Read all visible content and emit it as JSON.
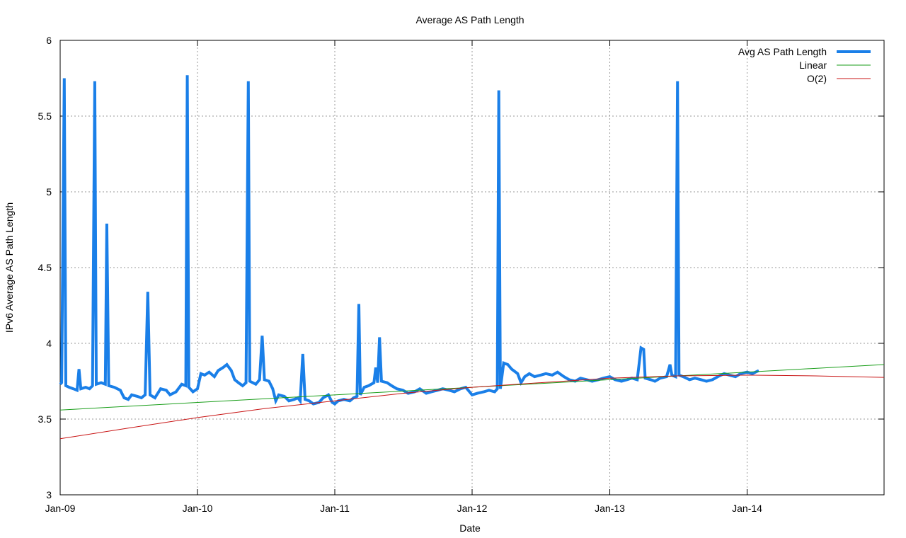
{
  "chart_data": {
    "type": "line",
    "title": "Average AS Path Length",
    "xlabel": "Date",
    "ylabel": "IPv6 Average AS Path Length",
    "x_ticks": [
      "Jan-09",
      "Jan-10",
      "Jan-11",
      "Jan-12",
      "Jan-13",
      "Jan-14"
    ],
    "y_ticks": [
      "3",
      "3.5",
      "4",
      "4.5",
      "5",
      "5.5",
      "6"
    ],
    "xlim": [
      "2009-01-01",
      "2014-12-31"
    ],
    "ylim": [
      3,
      6
    ],
    "grid": true,
    "legend_position": "top-right",
    "series": [
      {
        "name": "Avg AS Path Length",
        "color": "#1a7fe8",
        "style": "thick",
        "points": [
          [
            "2009-01-01",
            3.73
          ],
          [
            "2009-01-05",
            3.74
          ],
          [
            "2009-01-12",
            5.75
          ],
          [
            "2009-01-16",
            3.72
          ],
          [
            "2009-01-25",
            3.71
          ],
          [
            "2009-02-05",
            3.7
          ],
          [
            "2009-02-15",
            3.69
          ],
          [
            "2009-02-20",
            3.83
          ],
          [
            "2009-02-25",
            3.7
          ],
          [
            "2009-03-10",
            3.71
          ],
          [
            "2009-03-20",
            3.7
          ],
          [
            "2009-03-28",
            3.72
          ],
          [
            "2009-04-03",
            5.73
          ],
          [
            "2009-04-07",
            3.73
          ],
          [
            "2009-04-20",
            3.74
          ],
          [
            "2009-05-01",
            3.73
          ],
          [
            "2009-05-05",
            4.79
          ],
          [
            "2009-05-10",
            3.72
          ],
          [
            "2009-05-25",
            3.71
          ],
          [
            "2009-06-10",
            3.69
          ],
          [
            "2009-06-20",
            3.64
          ],
          [
            "2009-07-01",
            3.63
          ],
          [
            "2009-07-10",
            3.66
          ],
          [
            "2009-07-25",
            3.65
          ],
          [
            "2009-08-05",
            3.64
          ],
          [
            "2009-08-15",
            3.66
          ],
          [
            "2009-08-22",
            4.34
          ],
          [
            "2009-08-28",
            3.66
          ],
          [
            "2009-09-10",
            3.64
          ],
          [
            "2009-09-25",
            3.7
          ],
          [
            "2009-10-10",
            3.69
          ],
          [
            "2009-10-20",
            3.66
          ],
          [
            "2009-11-05",
            3.68
          ],
          [
            "2009-11-20",
            3.73
          ],
          [
            "2009-12-01",
            3.72
          ],
          [
            "2009-12-05",
            5.77
          ],
          [
            "2009-12-09",
            3.71
          ],
          [
            "2009-12-20",
            3.68
          ],
          [
            "2010-01-01",
            3.7
          ],
          [
            "2010-01-10",
            3.8
          ],
          [
            "2010-01-20",
            3.79
          ],
          [
            "2010-02-01",
            3.81
          ],
          [
            "2010-02-15",
            3.78
          ],
          [
            "2010-02-25",
            3.82
          ],
          [
            "2010-03-10",
            3.84
          ],
          [
            "2010-03-20",
            3.86
          ],
          [
            "2010-04-01",
            3.82
          ],
          [
            "2010-04-10",
            3.76
          ],
          [
            "2010-04-20",
            3.74
          ],
          [
            "2010-05-01",
            3.72
          ],
          [
            "2010-05-10",
            3.74
          ],
          [
            "2010-05-16",
            5.73
          ],
          [
            "2010-05-20",
            3.75
          ],
          [
            "2010-06-05",
            3.73
          ],
          [
            "2010-06-15",
            3.76
          ],
          [
            "2010-06-22",
            4.05
          ],
          [
            "2010-06-28",
            3.76
          ],
          [
            "2010-07-10",
            3.75
          ],
          [
            "2010-07-20",
            3.7
          ],
          [
            "2010-07-28",
            3.62
          ],
          [
            "2010-08-05",
            3.66
          ],
          [
            "2010-08-20",
            3.65
          ],
          [
            "2010-09-01",
            3.62
          ],
          [
            "2010-09-15",
            3.63
          ],
          [
            "2010-09-25",
            3.64
          ],
          [
            "2010-10-01",
            3.62
          ],
          [
            "2010-10-08",
            3.93
          ],
          [
            "2010-10-14",
            3.63
          ],
          [
            "2010-10-25",
            3.62
          ],
          [
            "2010-11-05",
            3.6
          ],
          [
            "2010-11-20",
            3.61
          ],
          [
            "2010-12-01",
            3.64
          ],
          [
            "2010-12-15",
            3.66
          ],
          [
            "2010-12-25",
            3.61
          ],
          [
            "2011-01-01",
            3.6
          ],
          [
            "2011-01-10",
            3.62
          ],
          [
            "2011-01-25",
            3.63
          ],
          [
            "2011-02-10",
            3.62
          ],
          [
            "2011-02-20",
            3.64
          ],
          [
            "2011-03-01",
            3.65
          ],
          [
            "2011-03-06",
            4.26
          ],
          [
            "2011-03-10",
            3.66
          ],
          [
            "2011-03-20",
            3.71
          ],
          [
            "2011-04-01",
            3.72
          ],
          [
            "2011-04-15",
            3.74
          ],
          [
            "2011-04-20",
            3.84
          ],
          [
            "2011-04-25",
            3.74
          ],
          [
            "2011-04-30",
            4.04
          ],
          [
            "2011-05-05",
            3.75
          ],
          [
            "2011-05-20",
            3.74
          ],
          [
            "2011-06-01",
            3.72
          ],
          [
            "2011-06-15",
            3.7
          ],
          [
            "2011-07-01",
            3.69
          ],
          [
            "2011-07-15",
            3.67
          ],
          [
            "2011-08-01",
            3.68
          ],
          [
            "2011-08-15",
            3.7
          ],
          [
            "2011-09-01",
            3.67
          ],
          [
            "2011-09-15",
            3.68
          ],
          [
            "2011-10-01",
            3.69
          ],
          [
            "2011-10-15",
            3.7
          ],
          [
            "2011-11-01",
            3.69
          ],
          [
            "2011-11-15",
            3.68
          ],
          [
            "2011-12-01",
            3.7
          ],
          [
            "2011-12-15",
            3.71
          ],
          [
            "2012-01-01",
            3.66
          ],
          [
            "2012-01-15",
            3.67
          ],
          [
            "2012-02-01",
            3.68
          ],
          [
            "2012-02-15",
            3.69
          ],
          [
            "2012-03-01",
            3.68
          ],
          [
            "2012-03-08",
            3.7
          ],
          [
            "2012-03-12",
            5.67
          ],
          [
            "2012-03-16",
            3.7
          ],
          [
            "2012-03-25",
            3.87
          ],
          [
            "2012-04-05",
            3.86
          ],
          [
            "2012-04-15",
            3.83
          ],
          [
            "2012-05-01",
            3.8
          ],
          [
            "2012-05-10",
            3.74
          ],
          [
            "2012-05-20",
            3.78
          ],
          [
            "2012-06-01",
            3.8
          ],
          [
            "2012-06-15",
            3.78
          ],
          [
            "2012-07-01",
            3.79
          ],
          [
            "2012-07-15",
            3.8
          ],
          [
            "2012-08-01",
            3.79
          ],
          [
            "2012-08-15",
            3.81
          ],
          [
            "2012-09-01",
            3.78
          ],
          [
            "2012-09-15",
            3.76
          ],
          [
            "2012-10-01",
            3.75
          ],
          [
            "2012-10-15",
            3.77
          ],
          [
            "2012-11-01",
            3.76
          ],
          [
            "2012-11-15",
            3.75
          ],
          [
            "2012-12-01",
            3.76
          ],
          [
            "2012-12-15",
            3.77
          ],
          [
            "2013-01-01",
            3.78
          ],
          [
            "2013-01-15",
            3.76
          ],
          [
            "2013-02-01",
            3.75
          ],
          [
            "2013-02-15",
            3.76
          ],
          [
            "2013-03-01",
            3.77
          ],
          [
            "2013-03-15",
            3.76
          ],
          [
            "2013-03-25",
            3.97
          ],
          [
            "2013-04-01",
            3.96
          ],
          [
            "2013-04-05",
            3.77
          ],
          [
            "2013-04-20",
            3.76
          ],
          [
            "2013-05-01",
            3.75
          ],
          [
            "2013-05-15",
            3.77
          ],
          [
            "2013-06-01",
            3.78
          ],
          [
            "2013-06-10",
            3.86
          ],
          [
            "2013-06-15",
            3.79
          ],
          [
            "2013-06-25",
            3.78
          ],
          [
            "2013-06-30",
            5.73
          ],
          [
            "2013-07-04",
            3.79
          ],
          [
            "2013-07-15",
            3.78
          ],
          [
            "2013-08-01",
            3.76
          ],
          [
            "2013-08-15",
            3.77
          ],
          [
            "2013-09-01",
            3.76
          ],
          [
            "2013-09-15",
            3.75
          ],
          [
            "2013-10-01",
            3.76
          ],
          [
            "2013-10-15",
            3.78
          ],
          [
            "2013-11-01",
            3.8
          ],
          [
            "2013-11-15",
            3.79
          ],
          [
            "2013-12-01",
            3.78
          ],
          [
            "2013-12-15",
            3.8
          ],
          [
            "2014-01-01",
            3.81
          ],
          [
            "2014-01-15",
            3.8
          ],
          [
            "2014-02-01",
            3.82
          ]
        ]
      },
      {
        "name": "Linear",
        "color": "#1a9e1a",
        "style": "thin",
        "points": [
          [
            "2009-01-01",
            3.56
          ],
          [
            "2014-12-31",
            3.86
          ]
        ]
      },
      {
        "name": "O(2)",
        "color": "#c81414",
        "style": "thin",
        "points": [
          [
            "2009-01-01",
            3.37
          ],
          [
            "2009-07-01",
            3.44
          ],
          [
            "2010-01-01",
            3.51
          ],
          [
            "2010-07-01",
            3.57
          ],
          [
            "2011-01-01",
            3.62
          ],
          [
            "2011-07-01",
            3.67
          ],
          [
            "2012-01-01",
            3.71
          ],
          [
            "2012-07-01",
            3.74
          ],
          [
            "2013-01-01",
            3.77
          ],
          [
            "2013-07-01",
            3.785
          ],
          [
            "2014-01-01",
            3.79
          ],
          [
            "2014-07-01",
            3.785
          ],
          [
            "2014-12-31",
            3.775
          ]
        ]
      }
    ]
  }
}
